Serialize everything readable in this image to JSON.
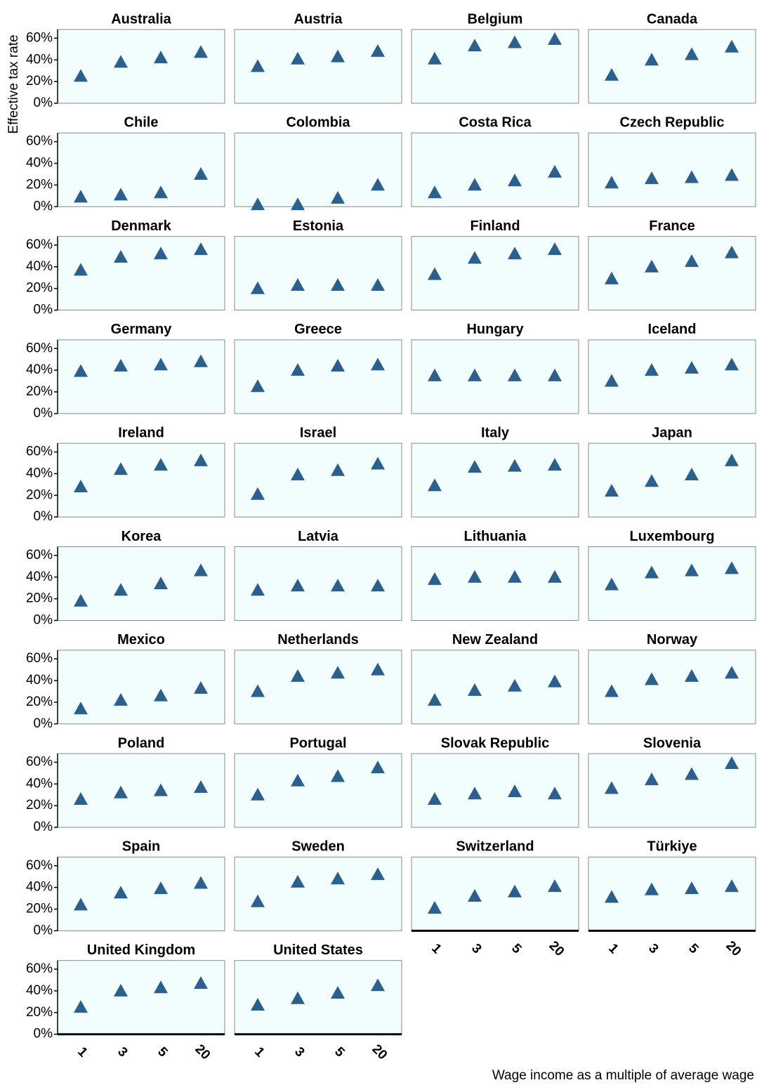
{
  "ylabel": "Effective tax rate",
  "xlabel": "Wage income as a multiple of average wage",
  "categories": [
    "1",
    "3",
    "5",
    "20"
  ],
  "ylim": [
    0,
    68
  ],
  "yticks": [
    {
      "value": 0,
      "label": "0%"
    },
    {
      "value": 20,
      "label": "20%"
    },
    {
      "value": 40,
      "label": "40%"
    },
    {
      "value": 60,
      "label": "60%"
    }
  ],
  "color": "#2a5f8e",
  "panel_color": "#f2fdfd",
  "chart_data": [
    {
      "type": "scatter",
      "title": "Australia",
      "values": [
        25,
        38,
        42,
        47
      ]
    },
    {
      "type": "scatter",
      "title": "Austria",
      "values": [
        34,
        41,
        43,
        48
      ]
    },
    {
      "type": "scatter",
      "title": "Belgium",
      "values": [
        41,
        53,
        56,
        59
      ]
    },
    {
      "type": "scatter",
      "title": "Canada",
      "values": [
        26,
        40,
        45,
        52
      ]
    },
    {
      "type": "scatter",
      "title": "Chile",
      "values": [
        9,
        11,
        13,
        30
      ]
    },
    {
      "type": "scatter",
      "title": "Colombia",
      "values": [
        2,
        2,
        8,
        20
      ]
    },
    {
      "type": "scatter",
      "title": "Costa Rica",
      "values": [
        13,
        20,
        24,
        32
      ]
    },
    {
      "type": "scatter",
      "title": "Czech Republic",
      "values": [
        22,
        26,
        27,
        29
      ]
    },
    {
      "type": "scatter",
      "title": "Denmark",
      "values": [
        37,
        49,
        52,
        56
      ]
    },
    {
      "type": "scatter",
      "title": "Estonia",
      "values": [
        20,
        23,
        23,
        23
      ]
    },
    {
      "type": "scatter",
      "title": "Finland",
      "values": [
        33,
        48,
        52,
        56
      ]
    },
    {
      "type": "scatter",
      "title": "France",
      "values": [
        29,
        40,
        45,
        53
      ]
    },
    {
      "type": "scatter",
      "title": "Germany",
      "values": [
        39,
        44,
        45,
        48
      ]
    },
    {
      "type": "scatter",
      "title": "Greece",
      "values": [
        25,
        40,
        44,
        45
      ]
    },
    {
      "type": "scatter",
      "title": "Hungary",
      "values": [
        35,
        35,
        35,
        35
      ]
    },
    {
      "type": "scatter",
      "title": "Iceland",
      "values": [
        30,
        40,
        42,
        45
      ]
    },
    {
      "type": "scatter",
      "title": "Ireland",
      "values": [
        28,
        44,
        48,
        52
      ]
    },
    {
      "type": "scatter",
      "title": "Israel",
      "values": [
        21,
        39,
        43,
        49
      ]
    },
    {
      "type": "scatter",
      "title": "Italy",
      "values": [
        29,
        46,
        47,
        48
      ]
    },
    {
      "type": "scatter",
      "title": "Japan",
      "values": [
        24,
        33,
        39,
        52
      ]
    },
    {
      "type": "scatter",
      "title": "Korea",
      "values": [
        18,
        28,
        34,
        46
      ]
    },
    {
      "type": "scatter",
      "title": "Latvia",
      "values": [
        28,
        32,
        32,
        32
      ]
    },
    {
      "type": "scatter",
      "title": "Lithuania",
      "values": [
        38,
        40,
        40,
        40
      ]
    },
    {
      "type": "scatter",
      "title": "Luxembourg",
      "values": [
        33,
        44,
        46,
        48
      ]
    },
    {
      "type": "scatter",
      "title": "Mexico",
      "values": [
        14,
        22,
        26,
        33
      ]
    },
    {
      "type": "scatter",
      "title": "Netherlands",
      "values": [
        30,
        44,
        47,
        50
      ]
    },
    {
      "type": "scatter",
      "title": "New Zealand",
      "values": [
        22,
        31,
        35,
        39
      ]
    },
    {
      "type": "scatter",
      "title": "Norway",
      "values": [
        30,
        41,
        44,
        47
      ]
    },
    {
      "type": "scatter",
      "title": "Poland",
      "values": [
        26,
        32,
        34,
        37
      ]
    },
    {
      "type": "scatter",
      "title": "Portugal",
      "values": [
        30,
        43,
        47,
        55
      ]
    },
    {
      "type": "scatter",
      "title": "Slovak Republic",
      "values": [
        26,
        31,
        33,
        31
      ]
    },
    {
      "type": "scatter",
      "title": "Slovenia",
      "values": [
        36,
        44,
        49,
        59
      ]
    },
    {
      "type": "scatter",
      "title": "Spain",
      "values": [
        24,
        35,
        39,
        44
      ]
    },
    {
      "type": "scatter",
      "title": "Sweden",
      "values": [
        27,
        45,
        48,
        52
      ]
    },
    {
      "type": "scatter",
      "title": "Switzerland",
      "values": [
        21,
        32,
        36,
        41
      ]
    },
    {
      "type": "scatter",
      "title": "Türkiye",
      "values": [
        31,
        38,
        39,
        41
      ]
    },
    {
      "type": "scatter",
      "title": "United Kingdom",
      "values": [
        25,
        40,
        43,
        47
      ]
    },
    {
      "type": "scatter",
      "title": "United States",
      "values": [
        27,
        33,
        38,
        45
      ]
    }
  ]
}
